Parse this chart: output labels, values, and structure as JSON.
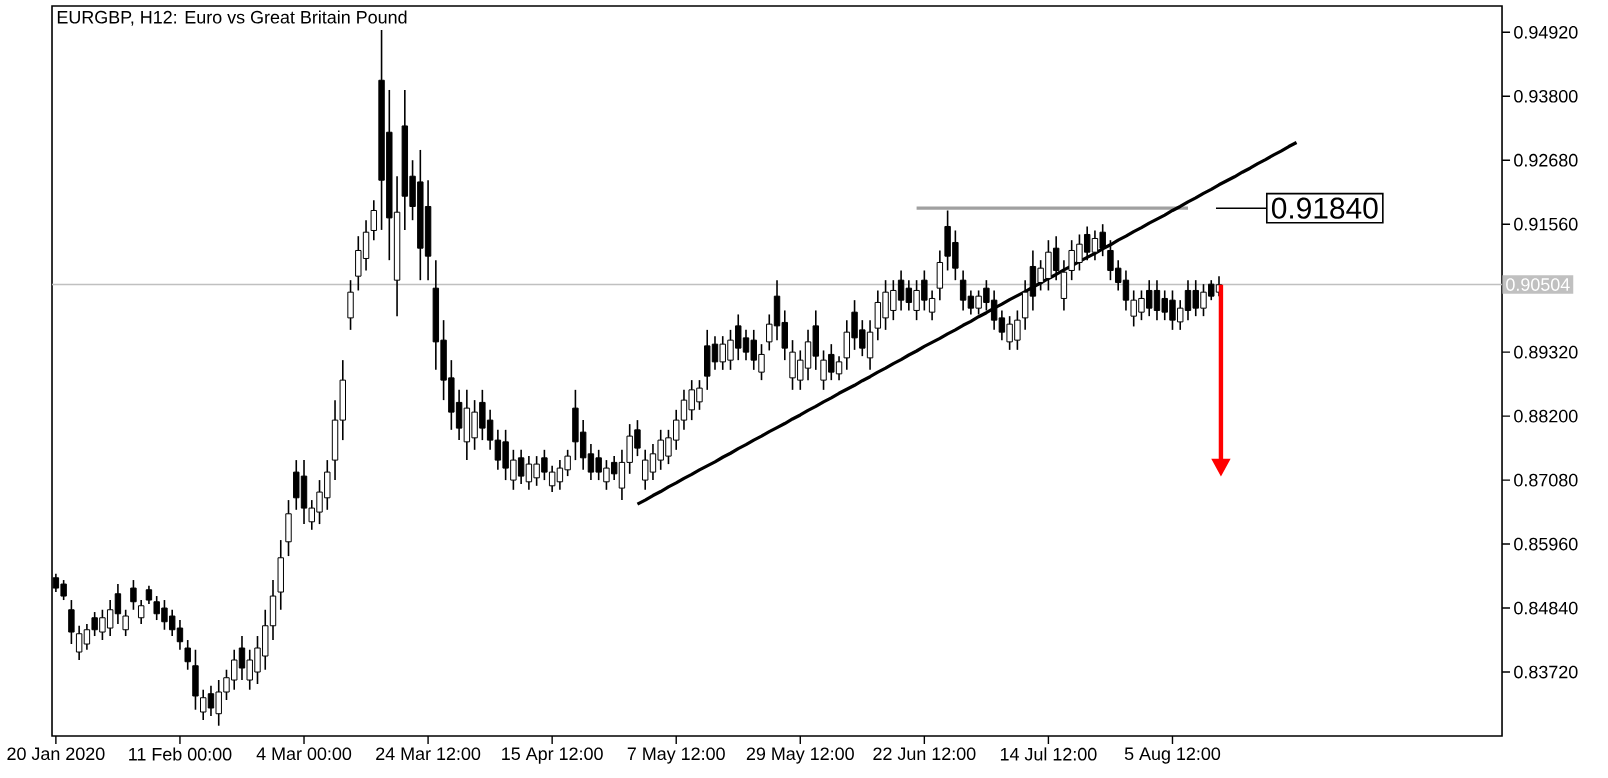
{
  "chart_data": {
    "type": "candlestick",
    "title": "EURGBP, H12:  Euro vs Great Britain Pound",
    "color": "#000000",
    "categories": [
      "20 Jan 2020",
      null,
      null,
      null,
      null,
      null,
      null,
      null,
      null,
      null,
      null,
      null,
      null,
      null,
      null,
      null,
      "11 Feb 00:00",
      null,
      null,
      null,
      null,
      null,
      null,
      null,
      null,
      null,
      null,
      null,
      null,
      null,
      null,
      null,
      "4 Mar 00:00",
      null,
      null,
      null,
      null,
      null,
      null,
      null,
      null,
      null,
      null,
      null,
      null,
      null,
      null,
      null,
      "24 Mar 12:00",
      null,
      null,
      null,
      null,
      null,
      null,
      null,
      null,
      null,
      null,
      null,
      null,
      null,
      null,
      null,
      "15 Apr 12:00",
      null,
      null,
      null,
      null,
      null,
      null,
      null,
      null,
      null,
      null,
      null,
      null,
      null,
      null,
      null,
      "7 May 12:00",
      null,
      null,
      null,
      null,
      null,
      null,
      null,
      null,
      null,
      null,
      null,
      null,
      null,
      null,
      null,
      "29 May 12:00",
      null,
      null,
      null,
      null,
      null,
      null,
      null,
      null,
      null,
      null,
      null,
      null,
      null,
      null,
      null,
      "22 Jun 12:00",
      null,
      null,
      null,
      null,
      null,
      null,
      null,
      null,
      null,
      null,
      null,
      null,
      null,
      null,
      null,
      "14 Jul 12:00",
      null,
      null,
      null,
      null,
      null,
      null,
      null,
      null,
      null,
      null,
      null,
      null,
      null,
      null,
      null,
      "5 Aug 12:00",
      null,
      null,
      null,
      null,
      null,
      null,
      null,
      null,
      null,
      null,
      null,
      null,
      null,
      null,
      null,
      null,
      null,
      null,
      null,
      null,
      null,
      null,
      null,
      null,
      null,
      null,
      null,
      null,
      null,
      null,
      null,
      null,
      null,
      null,
      null,
      null,
      null,
      null,
      null,
      null,
      null,
      null
    ],
    "ohlc": [
      [
        0.8537,
        0.8544,
        0.8512,
        0.8519
      ],
      [
        0.8526,
        0.8533,
        0.8498,
        0.8505
      ],
      [
        0.8481,
        0.8498,
        0.8421,
        0.8442
      ],
      [
        0.8407,
        0.8453,
        0.8393,
        0.8439
      ],
      [
        0.8421,
        0.8456,
        0.8411,
        0.8446
      ],
      [
        0.8467,
        0.8477,
        0.8435,
        0.8446
      ],
      [
        0.8442,
        0.8481,
        0.8428,
        0.8467
      ],
      [
        0.8449,
        0.8498,
        0.8435,
        0.8481
      ],
      [
        0.8509,
        0.8526,
        0.8456,
        0.8474
      ],
      [
        0.8446,
        0.8481,
        0.8435,
        0.847
      ],
      [
        0.8519,
        0.8533,
        0.8481,
        0.8495
      ],
      [
        0.8467,
        0.8498,
        0.8456,
        0.8488
      ],
      [
        0.8516,
        0.8523,
        0.8491,
        0.8498
      ],
      [
        0.8495,
        0.8505,
        0.8463,
        0.8474
      ],
      [
        0.8484,
        0.8498,
        0.8446,
        0.846
      ],
      [
        0.847,
        0.8481,
        0.8435,
        0.8446
      ],
      [
        0.8449,
        0.8463,
        0.8411,
        0.8425
      ],
      [
        0.8414,
        0.8428,
        0.8376,
        0.839
      ],
      [
        0.8383,
        0.8411,
        0.8306,
        0.833
      ],
      [
        0.8302,
        0.8341,
        0.8288,
        0.8327
      ],
      [
        0.8334,
        0.8348,
        0.8295,
        0.8309
      ],
      [
        0.8299,
        0.8358,
        0.8278,
        0.8337
      ],
      [
        0.8337,
        0.8376,
        0.8323,
        0.8362
      ],
      [
        0.8358,
        0.8411,
        0.8341,
        0.8393
      ],
      [
        0.8414,
        0.8435,
        0.8358,
        0.8379
      ],
      [
        0.8358,
        0.8411,
        0.8341,
        0.8393
      ],
      [
        0.8372,
        0.8435,
        0.8351,
        0.8414
      ],
      [
        0.84,
        0.8481,
        0.8376,
        0.8453
      ],
      [
        0.8453,
        0.8533,
        0.8428,
        0.8505
      ],
      [
        0.8512,
        0.8603,
        0.8481,
        0.8572
      ],
      [
        0.86,
        0.8673,
        0.8575,
        0.8649
      ],
      [
        0.8722,
        0.8743,
        0.8656,
        0.8677
      ],
      [
        0.8715,
        0.8743,
        0.8631,
        0.8659
      ],
      [
        0.8635,
        0.8673,
        0.8621,
        0.8659
      ],
      [
        0.8652,
        0.8708,
        0.8631,
        0.8687
      ],
      [
        0.8677,
        0.8743,
        0.8656,
        0.8722
      ],
      [
        0.8743,
        0.8848,
        0.8708,
        0.8813
      ],
      [
        0.8813,
        0.8918,
        0.8778,
        0.8883
      ],
      [
        0.8992,
        0.9058,
        0.8971,
        0.9037
      ],
      [
        0.9065,
        0.9135,
        0.904,
        0.911
      ],
      [
        0.9096,
        0.9163,
        0.9075,
        0.9142
      ],
      [
        0.9145,
        0.9198,
        0.9128,
        0.918
      ],
      [
        0.9408,
        0.9496,
        0.9146,
        0.9233
      ],
      [
        0.9317,
        0.9391,
        0.9093,
        0.9167
      ],
      [
        0.9058,
        0.924,
        0.8995,
        0.9177
      ],
      [
        0.9328,
        0.9391,
        0.9146,
        0.9205
      ],
      [
        0.924,
        0.9268,
        0.9163,
        0.9187
      ],
      [
        0.923,
        0.9286,
        0.9058,
        0.9114
      ],
      [
        0.9187,
        0.9233,
        0.9058,
        0.91
      ],
      [
        0.9044,
        0.9093,
        0.8901,
        0.895
      ],
      [
        0.8953,
        0.8988,
        0.8848,
        0.8883
      ],
      [
        0.8887,
        0.8918,
        0.8796,
        0.8827
      ],
      [
        0.8844,
        0.8866,
        0.8778,
        0.8799
      ],
      [
        0.8775,
        0.8866,
        0.8743,
        0.8834
      ],
      [
        0.8782,
        0.8848,
        0.8761,
        0.8827
      ],
      [
        0.8844,
        0.8866,
        0.8778,
        0.8799
      ],
      [
        0.8813,
        0.8831,
        0.8761,
        0.8778
      ],
      [
        0.8778,
        0.8796,
        0.8726,
        0.8743
      ],
      [
        0.8775,
        0.8796,
        0.8708,
        0.8729
      ],
      [
        0.8708,
        0.8761,
        0.8691,
        0.8743
      ],
      [
        0.8747,
        0.8761,
        0.8701,
        0.8715
      ],
      [
        0.8705,
        0.875,
        0.8691,
        0.8736
      ],
      [
        0.8712,
        0.875,
        0.8698,
        0.8736
      ],
      [
        0.8747,
        0.8761,
        0.8708,
        0.8722
      ],
      [
        0.8698,
        0.8733,
        0.8687,
        0.8722
      ],
      [
        0.8705,
        0.8743,
        0.8691,
        0.8729
      ],
      [
        0.8726,
        0.8761,
        0.8715,
        0.875
      ],
      [
        0.8834,
        0.8866,
        0.8743,
        0.8775
      ],
      [
        0.8792,
        0.8813,
        0.8726,
        0.8747
      ],
      [
        0.8754,
        0.8771,
        0.8708,
        0.8722
      ],
      [
        0.8747,
        0.8761,
        0.8708,
        0.8722
      ],
      [
        0.8705,
        0.8743,
        0.8691,
        0.8729
      ],
      [
        0.8739,
        0.875,
        0.8708,
        0.8719
      ],
      [
        0.8694,
        0.8761,
        0.8673,
        0.8739
      ],
      [
        0.8739,
        0.8806,
        0.8719,
        0.8785
      ],
      [
        0.8796,
        0.8813,
        0.875,
        0.8764
      ],
      [
        0.8708,
        0.8761,
        0.8691,
        0.8743
      ],
      [
        0.8722,
        0.8771,
        0.8708,
        0.8754
      ],
      [
        0.8743,
        0.8796,
        0.8726,
        0.8778
      ],
      [
        0.875,
        0.8796,
        0.8736,
        0.8782
      ],
      [
        0.8778,
        0.8831,
        0.8761,
        0.8813
      ],
      [
        0.8813,
        0.8866,
        0.8796,
        0.8848
      ],
      [
        0.8831,
        0.8883,
        0.8813,
        0.8866
      ],
      [
        0.8845,
        0.8883,
        0.8831,
        0.8869
      ],
      [
        0.8943,
        0.8971,
        0.8866,
        0.889
      ],
      [
        0.8946,
        0.896,
        0.8901,
        0.8915
      ],
      [
        0.8915,
        0.896,
        0.8901,
        0.8946
      ],
      [
        0.8918,
        0.8971,
        0.8901,
        0.8953
      ],
      [
        0.8978,
        0.8998,
        0.8918,
        0.8939
      ],
      [
        0.8957,
        0.8971,
        0.8918,
        0.8932
      ],
      [
        0.8953,
        0.8971,
        0.8901,
        0.8918
      ],
      [
        0.8897,
        0.8946,
        0.8883,
        0.8928
      ],
      [
        0.895,
        0.8998,
        0.8935,
        0.8981
      ],
      [
        0.903,
        0.9058,
        0.8953,
        0.8978
      ],
      [
        0.8984,
        0.9005,
        0.8918,
        0.8939
      ],
      [
        0.8887,
        0.8953,
        0.8866,
        0.8932
      ],
      [
        0.8883,
        0.8935,
        0.8866,
        0.8918
      ],
      [
        0.8904,
        0.8971,
        0.8883,
        0.895
      ],
      [
        0.8978,
        0.9005,
        0.8901,
        0.8925
      ],
      [
        0.8883,
        0.8935,
        0.8866,
        0.8918
      ],
      [
        0.8928,
        0.8946,
        0.8883,
        0.8897
      ],
      [
        0.8894,
        0.8925,
        0.8883,
        0.8915
      ],
      [
        0.8922,
        0.8988,
        0.8901,
        0.8967
      ],
      [
        0.9002,
        0.9023,
        0.8936,
        0.8957
      ],
      [
        0.8971,
        0.8988,
        0.8925,
        0.8939
      ],
      [
        0.8922,
        0.8988,
        0.8901,
        0.8967
      ],
      [
        0.8974,
        0.904,
        0.8953,
        0.9019
      ],
      [
        0.8992,
        0.9058,
        0.8971,
        0.9037
      ],
      [
        0.9005,
        0.9058,
        0.8988,
        0.904
      ],
      [
        0.9058,
        0.9075,
        0.9005,
        0.9023
      ],
      [
        0.9044,
        0.9058,
        0.9005,
        0.9019
      ],
      [
        0.9005,
        0.9058,
        0.8988,
        0.904
      ],
      [
        0.9058,
        0.9075,
        0.9005,
        0.9023
      ],
      [
        0.9002,
        0.904,
        0.8988,
        0.9026
      ],
      [
        0.9044,
        0.911,
        0.9023,
        0.9089
      ],
      [
        0.9152,
        0.918,
        0.9075,
        0.91
      ],
      [
        0.9124,
        0.9145,
        0.9058,
        0.9079
      ],
      [
        0.9058,
        0.9075,
        0.9005,
        0.9023
      ],
      [
        0.903,
        0.904,
        0.8998,
        0.9009
      ],
      [
        0.9009,
        0.904,
        0.8998,
        0.903
      ],
      [
        0.9044,
        0.9058,
        0.9005,
        0.9019
      ],
      [
        0.9023,
        0.904,
        0.8971,
        0.8988
      ],
      [
        0.8992,
        0.9005,
        0.8953,
        0.8967
      ],
      [
        0.895,
        0.8995,
        0.8936,
        0.8981
      ],
      [
        0.8953,
        0.9005,
        0.8936,
        0.8988
      ],
      [
        0.8992,
        0.9058,
        0.8971,
        0.9037
      ],
      [
        0.9082,
        0.911,
        0.9005,
        0.903
      ],
      [
        0.9054,
        0.9093,
        0.904,
        0.9079
      ],
      [
        0.9061,
        0.9128,
        0.904,
        0.9107
      ],
      [
        0.9114,
        0.9135,
        0.9058,
        0.9075
      ],
      [
        0.9026,
        0.9093,
        0.9005,
        0.9072
      ],
      [
        0.9075,
        0.9128,
        0.9058,
        0.911
      ],
      [
        0.9089,
        0.9138,
        0.9075,
        0.9121
      ],
      [
        0.9138,
        0.9152,
        0.9093,
        0.9107
      ],
      [
        0.9107,
        0.9145,
        0.9093,
        0.9131
      ],
      [
        0.9142,
        0.9156,
        0.91,
        0.9114
      ],
      [
        0.911,
        0.9128,
        0.9058,
        0.9075
      ],
      [
        0.9079,
        0.9093,
        0.904,
        0.9054
      ],
      [
        0.9058,
        0.9075,
        0.9005,
        0.9023
      ],
      [
        0.8995,
        0.904,
        0.8977,
        0.9023
      ],
      [
        0.9002,
        0.904,
        0.8988,
        0.9026
      ],
      [
        0.904,
        0.9058,
        0.8995,
        0.9009
      ],
      [
        0.904,
        0.9058,
        0.8988,
        0.9005
      ],
      [
        0.9026,
        0.904,
        0.8988,
        0.9002
      ],
      [
        0.9023,
        0.904,
        0.8971,
        0.8988
      ],
      [
        0.8985,
        0.9023,
        0.8971,
        0.9009
      ],
      [
        0.904,
        0.9058,
        0.8988,
        0.9005
      ],
      [
        0.904,
        0.9058,
        0.8995,
        0.9009
      ],
      [
        0.9009,
        0.9051,
        0.8995,
        0.9037
      ],
      [
        0.9051,
        0.9058,
        0.9023,
        0.903
      ],
      [
        0.9037,
        0.9065,
        0.903,
        0.905
      ],
      null,
      null,
      null,
      null,
      null,
      null,
      null,
      null,
      null,
      null,
      null,
      null,
      null,
      null,
      null,
      null,
      null,
      null,
      null,
      null,
      null,
      null,
      null,
      null,
      null,
      null,
      null,
      null,
      null,
      null,
      null,
      null,
      null,
      null,
      null,
      null
    ],
    "series": [
      {
        "type": "line",
        "color": "#000000",
        "values": [
          null,
          null,
          null,
          null,
          null,
          null,
          null,
          null,
          null,
          null,
          null,
          null,
          null,
          null,
          null,
          null,
          null,
          null,
          null,
          null,
          null,
          null,
          null,
          null,
          null,
          null,
          null,
          null,
          null,
          null,
          null,
          null,
          null,
          null,
          null,
          null,
          null,
          null,
          null,
          null,
          null,
          null,
          null,
          null,
          null,
          null,
          null,
          null,
          null,
          null,
          null,
          null,
          null,
          null,
          null,
          null,
          null,
          null,
          null,
          null,
          null,
          null,
          null,
          null,
          null,
          null,
          null,
          null,
          null,
          null,
          null,
          null,
          null,
          null,
          null,
          0.8666,
          0.8673,
          0.8681,
          0.8688,
          0.8696,
          0.8703,
          0.8711,
          0.8718,
          0.8726,
          0.8733,
          0.874,
          0.8748,
          0.8755,
          0.8763,
          0.877,
          0.8778,
          0.8785,
          0.8793,
          0.88,
          0.8807,
          0.8815,
          0.8822,
          0.883,
          0.8837,
          0.8845,
          0.8852,
          0.886,
          0.8867,
          0.8874,
          0.8882,
          0.8889,
          0.8897,
          0.8904,
          0.8912,
          0.8919,
          0.8927,
          0.8934,
          0.8942,
          0.8949,
          0.8956,
          0.8964,
          0.8971,
          0.8979,
          0.8986,
          0.8994,
          0.9001,
          0.9009,
          0.9016,
          0.9024,
          0.9031,
          0.9038,
          0.9046,
          0.9053,
          0.9061,
          0.9068,
          0.9076,
          0.9083,
          0.9091,
          0.9098,
          0.9105,
          0.9113,
          0.912,
          0.9128,
          0.9135,
          0.9143,
          0.915,
          0.9158,
          0.9165,
          0.9172,
          0.918,
          0.9187,
          0.9195,
          0.9202,
          0.921,
          0.9217,
          0.9225,
          0.9232,
          0.9239,
          0.9247,
          0.9254,
          0.9262,
          0.9269,
          0.9277,
          0.9284,
          0.9292,
          0.9299,
          null,
          null,
          null,
          null,
          null,
          null,
          null,
          null,
          null,
          null,
          null,
          null,
          null,
          null,
          null,
          null,
          null,
          null,
          null,
          null,
          null,
          null,
          null,
          null,
          null,
          null
        ]
      },
      {
        "type": "line",
        "color": "#a0a0a0",
        "values": [
          null,
          null,
          null,
          null,
          null,
          null,
          null,
          null,
          null,
          null,
          null,
          null,
          null,
          null,
          null,
          null,
          null,
          null,
          null,
          null,
          null,
          null,
          null,
          null,
          null,
          null,
          null,
          null,
          null,
          null,
          null,
          null,
          null,
          null,
          null,
          null,
          null,
          null,
          null,
          null,
          null,
          null,
          null,
          null,
          null,
          null,
          null,
          null,
          null,
          null,
          null,
          null,
          null,
          null,
          null,
          null,
          null,
          null,
          null,
          null,
          null,
          null,
          null,
          null,
          null,
          null,
          null,
          null,
          null,
          null,
          null,
          null,
          null,
          null,
          null,
          null,
          null,
          null,
          null,
          null,
          null,
          null,
          null,
          null,
          null,
          null,
          null,
          null,
          null,
          null,
          null,
          null,
          null,
          null,
          null,
          null,
          null,
          null,
          null,
          null,
          null,
          null,
          null,
          null,
          null,
          null,
          null,
          null,
          null,
          null,
          null,
          0.9184,
          0.9184,
          0.9184,
          0.9184,
          0.9184,
          0.9184,
          0.9184,
          0.9184,
          0.9184,
          0.9184,
          0.9184,
          0.9184,
          0.9184,
          0.9184,
          0.9184,
          0.9184,
          0.9184,
          0.9184,
          0.9184,
          0.9184,
          0.9184,
          0.9184,
          0.9184,
          0.9184,
          0.9184,
          0.9184,
          0.9184,
          0.9184,
          0.9184,
          0.9184,
          0.9184,
          0.9184,
          0.9184,
          0.9184,
          0.9184,
          0.9184,
          null,
          null,
          null,
          null,
          null,
          null,
          null,
          null,
          null,
          null,
          null,
          null,
          null,
          null,
          null,
          null,
          null,
          null,
          null,
          null,
          null,
          null,
          null,
          null,
          null,
          null,
          null,
          null,
          null,
          null,
          null,
          null,
          null,
          null,
          null,
          null,
          null,
          null,
          null,
          null
        ]
      }
    ],
    "ylim": [
      0.826,
      0.9538
    ],
    "yticks": [
      {
        "value": 0.8372,
        "label": "0.83720"
      },
      {
        "value": 0.8484,
        "label": "0.84840"
      },
      {
        "value": 0.8596,
        "label": "0.85960"
      },
      {
        "value": 0.8708,
        "label": "0.87080"
      },
      {
        "value": 0.882,
        "label": "0.88200"
      },
      {
        "value": 0.8932,
        "label": "0.89320"
      },
      {
        "value": 0.9156,
        "label": "0.91560"
      },
      {
        "value": 0.9268,
        "label": "0.92680"
      },
      {
        "value": 0.938,
        "label": "0.93800"
      },
      {
        "value": 0.9492,
        "label": "0.94920"
      }
    ],
    "ref_lines": [
      {
        "axis": "y",
        "value": 0.90504,
        "label": "0.90504",
        "color": "#c0c0c0"
      }
    ],
    "annotations": [
      "0.91840"
    ]
  }
}
